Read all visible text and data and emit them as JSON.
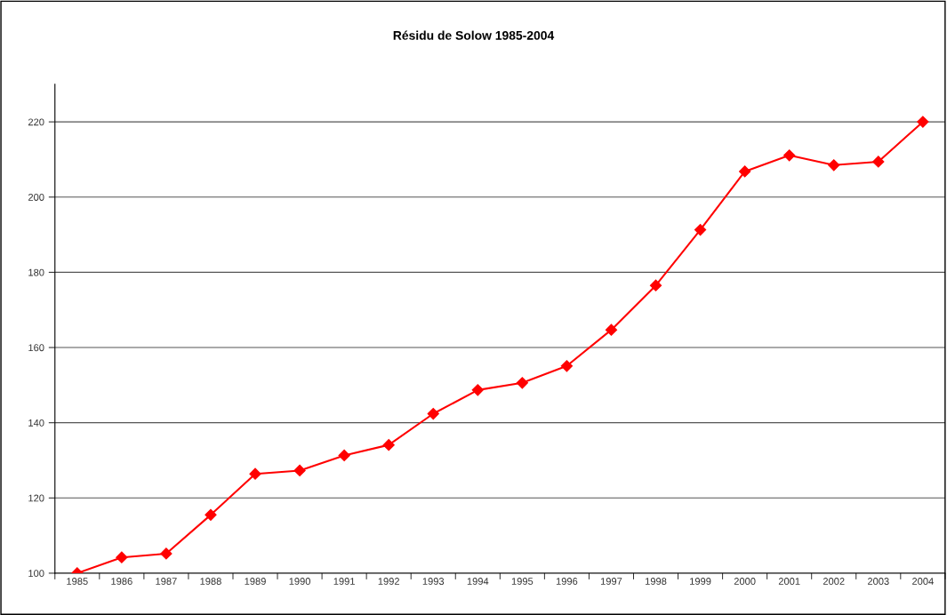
{
  "chart_data": {
    "type": "line",
    "title": "Résidu de Solow 1985-2004",
    "categories": [
      "1985",
      "1986",
      "1987",
      "1988",
      "1989",
      "1990",
      "1991",
      "1992",
      "1993",
      "1994",
      "1995",
      "1996",
      "1997",
      "1998",
      "1999",
      "2000",
      "2001",
      "2002",
      "2003",
      "2004"
    ],
    "series": [
      {
        "color": "#ff0000",
        "values": [
          100,
          104.2,
          105.2,
          115.5,
          126.4,
          127.3,
          131.3,
          134.1,
          142.4,
          148.7,
          150.6,
          155.1,
          164.7,
          176.5,
          191.3,
          206.8,
          211.1,
          208.5,
          209.4,
          220
        ]
      }
    ],
    "ylim": [
      100,
      230
    ],
    "yticks": [
      100,
      120,
      140,
      160,
      180,
      200,
      220
    ],
    "grid": "y",
    "marker": "diamond",
    "line_style": "solid"
  }
}
